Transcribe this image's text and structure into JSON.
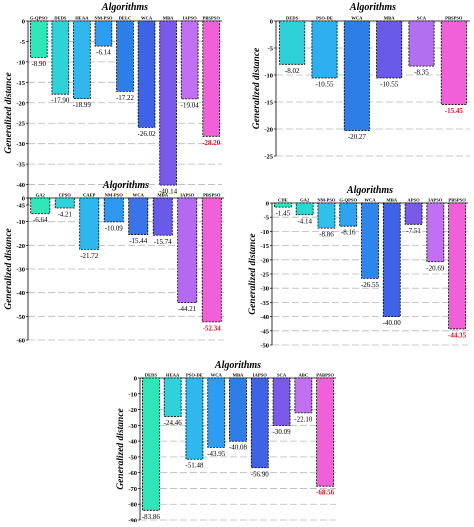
{
  "chart_data": [
    {
      "type": "bar",
      "title": "Algorithms",
      "ylabel": "Generalized distance",
      "categories": [
        "G-QPSO",
        "DEDS",
        "HEAA",
        "NM-PSO",
        "DELC",
        "WCA",
        "MBA",
        "IAPSO",
        "PBSPSO"
      ],
      "values": [
        -8.9,
        -17.9,
        -18.99,
        -6.14,
        -17.22,
        -26.02,
        -40.14,
        -19.04,
        -28.2
      ],
      "labels": [
        "-8.90",
        "-17.90",
        "-18.99",
        "-6.14",
        "-17.22",
        "-26.02",
        "-40.14",
        "-19.04",
        "-28.20"
      ],
      "colors": [
        "#2ee6b8",
        "#2ed2d8",
        "#30b8ee",
        "#2e9cf0",
        "#2e7ee8",
        "#3f63e6",
        "#7a5ae8",
        "#c070f0",
        "#f060d8"
      ],
      "ylim": [
        -45,
        0
      ],
      "yticks": [
        0,
        -5,
        -10,
        -15,
        -20,
        -25,
        -30,
        -35,
        -40,
        -45
      ],
      "grid": true,
      "highlight_last": true
    },
    {
      "type": "bar",
      "title": "Algorithms",
      "ylabel": "Generalized distance",
      "categories": [
        "DEDS",
        "PSO-DE",
        "WCA",
        "MBA",
        "SCA",
        "PBSPSO"
      ],
      "values": [
        -8.02,
        -10.55,
        -20.27,
        -10.55,
        -8.35,
        -15.45
      ],
      "labels": [
        "-8.02",
        "-10.55",
        "-20.27",
        "-10.55",
        "-8.35",
        "-15.45"
      ],
      "colors": [
        "#2ecfd6",
        "#2eb0f0",
        "#2e7ee8",
        "#6a5ae8",
        "#b070f0",
        "#f060d8"
      ],
      "ylim": [
        -25,
        0
      ],
      "yticks": [
        0,
        -5,
        -10,
        -15,
        -20,
        -25
      ],
      "grid": true,
      "highlight_last": true
    },
    {
      "type": "bar",
      "title": "Algorithms",
      "ylabel": "Generalized distance",
      "categories": [
        "GA2",
        "CPSO",
        "CAEP",
        "NM-PSO",
        "WCA",
        "MBA",
        "IAPSO",
        "PBSPSO"
      ],
      "values": [
        -6.64,
        -4.21,
        -21.72,
        -10.09,
        -15.44,
        -15.74,
        -44.21,
        -52.34
      ],
      "labels": [
        "-6.64",
        "-4.21",
        "-21.72",
        "-10.09",
        "-15.44",
        "-15.74",
        "-44.21",
        "-52.34"
      ],
      "colors": [
        "#2ee6b8",
        "#2ed2d8",
        "#2eb6ee",
        "#2e98f0",
        "#3a74e8",
        "#6a5ae8",
        "#b46af0",
        "#f060d8"
      ],
      "ylim": [
        -60,
        0
      ],
      "yticks": [
        0,
        -10,
        -20,
        -30,
        -40,
        -50,
        -60
      ],
      "grid": true,
      "highlight_last": true
    },
    {
      "type": "bar",
      "title": "Algorithms",
      "ylabel": "Generalized distance",
      "categories": [
        "CDE",
        "GA2",
        "NM-PSO",
        "G-QPSO",
        "WCA",
        "MBA",
        "APSO",
        "IAPSO",
        "PBSPSO"
      ],
      "values": [
        -1.45,
        -4.14,
        -8.86,
        -8.16,
        -26.55,
        -40.0,
        -7.51,
        -20.69,
        -44.35
      ],
      "labels": [
        "-1.45",
        "-4.14",
        "-8.86",
        "-8.16",
        "-26.55",
        "-40.00",
        "-7.51",
        "-20.69",
        "-44.35"
      ],
      "colors": [
        "#2ee6b8",
        "#2ed6d2",
        "#30c0ea",
        "#2ea4f0",
        "#2e86ec",
        "#3f63e6",
        "#7a5ae8",
        "#c070f0",
        "#f060d8"
      ],
      "ylim": [
        -50,
        0
      ],
      "yticks": [
        0,
        -5,
        -10,
        -15,
        -20,
        -25,
        -30,
        -35,
        -40,
        -45,
        -50
      ],
      "grid": true,
      "highlight_last": true
    },
    {
      "type": "bar",
      "title": "Algorithms",
      "ylabel": "Generalized distance",
      "categories": [
        "DEDS",
        "HEAA",
        "PSO-DE",
        "WCA",
        "MBA",
        "IAPSO",
        "SCA",
        "ABC",
        "PABPSO"
      ],
      "values": [
        -83.86,
        -24.46,
        -51.48,
        -43.95,
        -40.08,
        -56.9,
        -30.09,
        -22.1,
        -68.56
      ],
      "labels": [
        "-83.86",
        "-24.46",
        "-51.48",
        "-43.95",
        "-40.08",
        "-56.90",
        "-30.09",
        "-22.10",
        "-68.56"
      ],
      "colors": [
        "#2ee6b8",
        "#2ed2d8",
        "#30b8ee",
        "#2e9cf0",
        "#2e7ee8",
        "#3f63e6",
        "#7a5ae8",
        "#c070f0",
        "#f060d8"
      ],
      "ylim": [
        -90,
        0
      ],
      "yticks": [
        0,
        -10,
        -20,
        -30,
        -40,
        -50,
        -60,
        -70,
        -80,
        -90
      ],
      "grid": true,
      "highlight_last": true
    }
  ]
}
